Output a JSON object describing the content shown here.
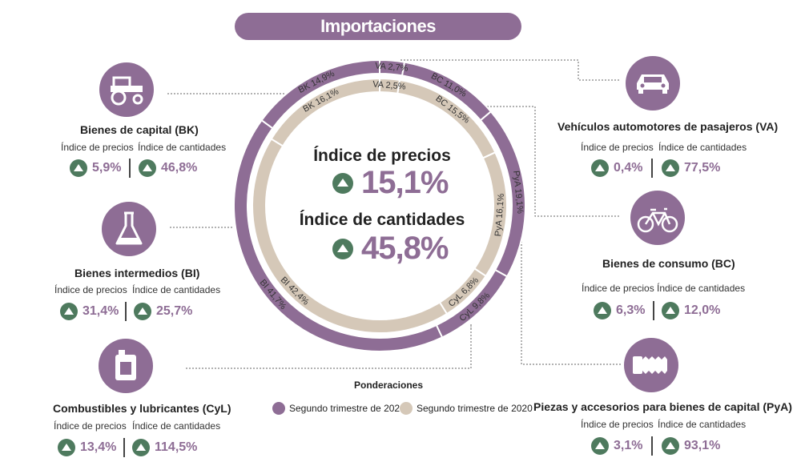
{
  "title": "Importaciones",
  "center": {
    "price_label": "Índice de precios",
    "price_value": "15,1%",
    "qty_label": "Índice de cantidades",
    "qty_value": "45,8%"
  },
  "labels": {
    "price": "Índice de precios",
    "qty": "Índice de cantidades"
  },
  "categories": [
    {
      "key": "BK",
      "title": "Bienes de capital (BK)",
      "price": "5,9%",
      "qty": "46,8%",
      "icon": "tractor-icon"
    },
    {
      "key": "BI",
      "title": "Bienes intermedios (BI)",
      "price": "31,4%",
      "qty": "25,7%",
      "icon": "flask-icon"
    },
    {
      "key": "CyL",
      "title": "Combustibles y lubricantes (CyL)",
      "price": "13,4%",
      "qty": "114,5%",
      "icon": "fuel-can-icon"
    },
    {
      "key": "VA",
      "title": "Vehículos automotores de pasajeros (VA)",
      "price": "0,4%",
      "qty": "77,5%",
      "icon": "car-icon"
    },
    {
      "key": "BC",
      "title": "Bienes de consumo (BC)",
      "price": "6,3%",
      "qty": "12,0%",
      "icon": "bicycle-icon"
    },
    {
      "key": "PyA",
      "title": "Piezas y accesorios para bienes de capital (PyA)",
      "price": "3,1%",
      "qty": "93,1%",
      "icon": "bolt-icon"
    }
  ],
  "legend": {
    "title": "Ponderaciones",
    "s2021": "Segundo trimestre de 2021",
    "s2020": "Segundo trimestre de 2020"
  },
  "colors": {
    "purple": "#8e6d95",
    "beige": "#d5c8b8",
    "green": "#4e7a5e"
  },
  "chart_data": {
    "type": "pie",
    "title": "Importaciones",
    "series": [
      {
        "name": "Segundo trimestre de 2021",
        "slices": [
          {
            "label": "VA 2,7%",
            "value": 2.7
          },
          {
            "label": "BC 11,0%",
            "value": 11.0
          },
          {
            "label": "PyA 19,1%",
            "value": 19.1
          },
          {
            "label": "CyL 9,8%",
            "value": 9.8
          },
          {
            "label": "BI 41,7%",
            "value": 41.7
          },
          {
            "label": "BK 14,9%",
            "value": 14.9
          }
        ]
      },
      {
        "name": "Segundo trimestre de 2020",
        "slices": [
          {
            "label": "VA 2,5%",
            "value": 2.5
          },
          {
            "label": "BC 15,5%",
            "value": 15.5
          },
          {
            "label": "PyA 16,1%",
            "value": 16.1
          },
          {
            "label": "CyL 6,8%",
            "value": 6.8
          },
          {
            "label": "BI 42,4%",
            "value": 42.4
          },
          {
            "label": "BK 16,1%",
            "value": 16.1
          }
        ]
      }
    ]
  }
}
